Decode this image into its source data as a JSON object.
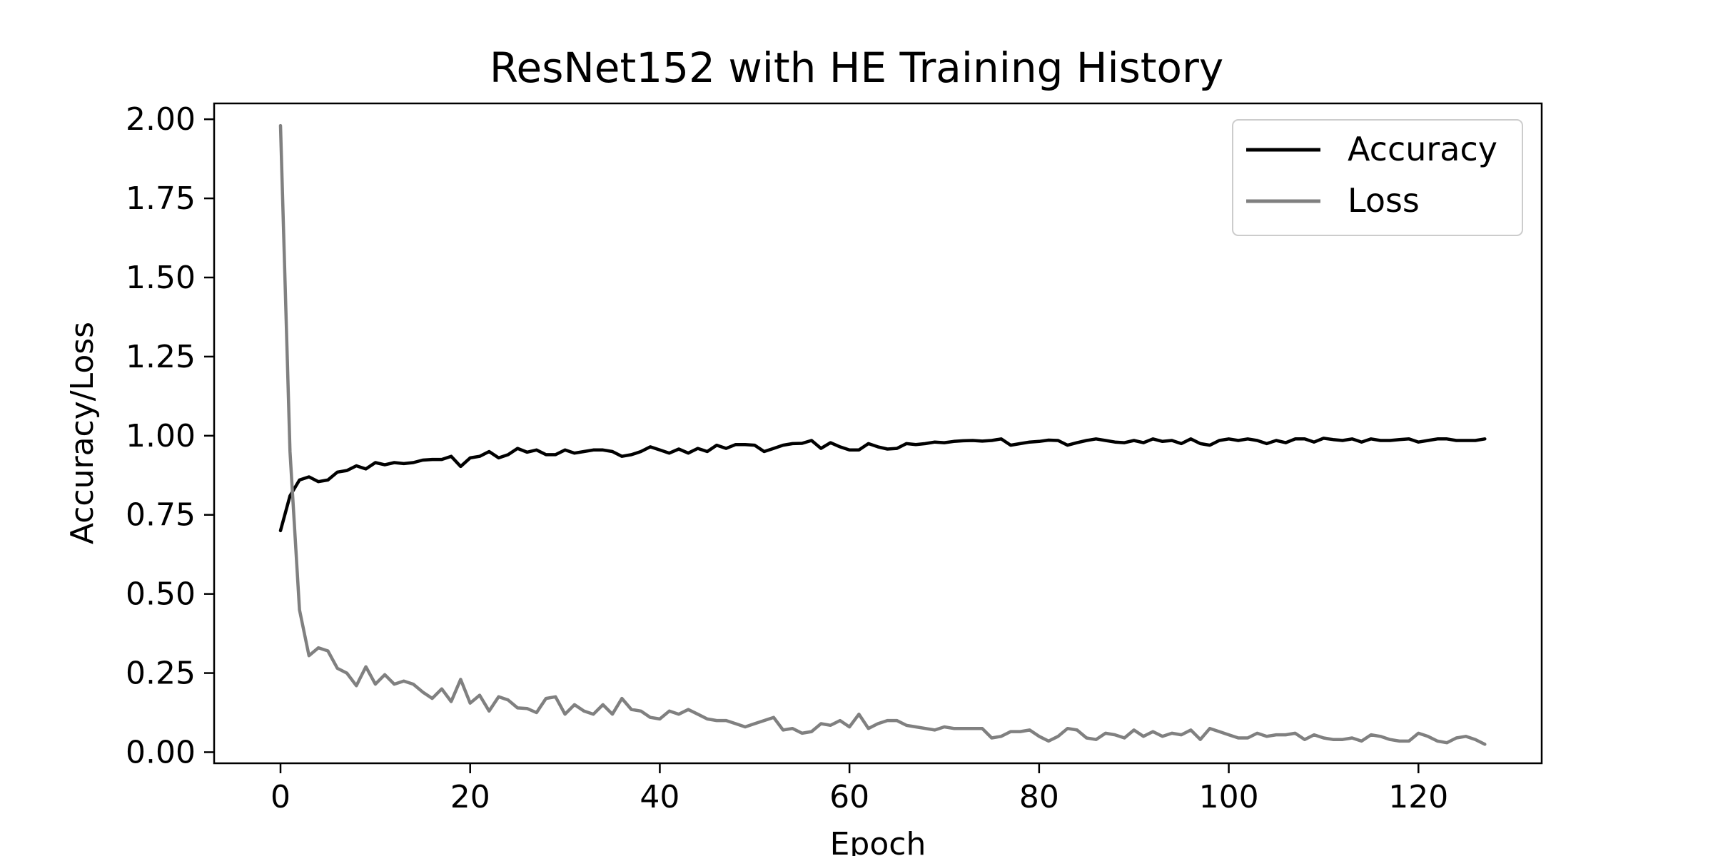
{
  "chart_data": {
    "type": "line",
    "title": "ResNet152 with HE Training History",
    "xlabel": "Epoch",
    "ylabel": "Accuracy/Loss",
    "xlim": [
      -7,
      133
    ],
    "ylim": [
      -0.035,
      2.05
    ],
    "x_ticks": [
      0,
      20,
      40,
      60,
      80,
      100,
      120
    ],
    "x_tick_labels": [
      "0",
      "20",
      "40",
      "60",
      "80",
      "100",
      "120"
    ],
    "y_ticks": [
      0,
      0.25,
      0.5,
      0.75,
      1.0,
      1.25,
      1.5,
      1.75,
      2.0
    ],
    "y_tick_labels": [
      "0.00",
      "0.25",
      "0.50",
      "0.75",
      "1.00",
      "1.25",
      "1.50",
      "1.75",
      "2.00"
    ],
    "grid": false,
    "legend_position": "top-right",
    "series": [
      {
        "name": "Accuracy",
        "color": "#000000",
        "values": [
          0.7,
          0.81,
          0.86,
          0.87,
          0.855,
          0.86,
          0.885,
          0.89,
          0.905,
          0.895,
          0.915,
          0.908,
          0.915,
          0.912,
          0.915,
          0.923,
          0.925,
          0.925,
          0.935,
          0.903,
          0.93,
          0.935,
          0.95,
          0.93,
          0.94,
          0.96,
          0.948,
          0.955,
          0.94,
          0.94,
          0.955,
          0.945,
          0.95,
          0.955,
          0.955,
          0.95,
          0.935,
          0.94,
          0.95,
          0.965,
          0.955,
          0.945,
          0.958,
          0.945,
          0.96,
          0.95,
          0.97,
          0.96,
          0.972,
          0.972,
          0.97,
          0.95,
          0.96,
          0.97,
          0.975,
          0.976,
          0.985,
          0.96,
          0.978,
          0.965,
          0.955,
          0.955,
          0.975,
          0.965,
          0.958,
          0.96,
          0.975,
          0.972,
          0.975,
          0.98,
          0.978,
          0.982,
          0.984,
          0.985,
          0.983,
          0.985,
          0.99,
          0.97,
          0.975,
          0.98,
          0.982,
          0.986,
          0.985,
          0.97,
          0.978,
          0.985,
          0.99,
          0.985,
          0.98,
          0.978,
          0.985,
          0.978,
          0.99,
          0.982,
          0.985,
          0.975,
          0.99,
          0.975,
          0.97,
          0.985,
          0.99,
          0.985,
          0.99,
          0.985,
          0.975,
          0.985,
          0.978,
          0.99,
          0.99,
          0.98,
          0.992,
          0.988,
          0.985,
          0.99,
          0.98,
          0.99,
          0.985,
          0.985,
          0.988,
          0.99,
          0.98,
          0.985,
          0.99,
          0.99,
          0.985,
          0.985,
          0.985,
          0.99
        ]
      },
      {
        "name": "Loss",
        "color": "#808080",
        "values": [
          1.98,
          0.95,
          0.45,
          0.305,
          0.33,
          0.32,
          0.265,
          0.25,
          0.21,
          0.27,
          0.215,
          0.245,
          0.215,
          0.225,
          0.215,
          0.19,
          0.17,
          0.2,
          0.16,
          0.23,
          0.155,
          0.18,
          0.13,
          0.175,
          0.165,
          0.14,
          0.138,
          0.125,
          0.17,
          0.175,
          0.12,
          0.15,
          0.13,
          0.12,
          0.15,
          0.12,
          0.17,
          0.135,
          0.13,
          0.11,
          0.105,
          0.13,
          0.12,
          0.135,
          0.12,
          0.105,
          0.1,
          0.1,
          0.09,
          0.08,
          0.09,
          0.1,
          0.11,
          0.07,
          0.075,
          0.06,
          0.065,
          0.09,
          0.085,
          0.1,
          0.08,
          0.12,
          0.075,
          0.09,
          0.1,
          0.1,
          0.085,
          0.08,
          0.075,
          0.07,
          0.08,
          0.075,
          0.075,
          0.075,
          0.075,
          0.045,
          0.05,
          0.065,
          0.065,
          0.07,
          0.05,
          0.035,
          0.05,
          0.075,
          0.07,
          0.045,
          0.04,
          0.06,
          0.055,
          0.045,
          0.07,
          0.05,
          0.065,
          0.05,
          0.06,
          0.055,
          0.07,
          0.04,
          0.075,
          0.065,
          0.055,
          0.045,
          0.045,
          0.06,
          0.05,
          0.055,
          0.055,
          0.06,
          0.04,
          0.055,
          0.045,
          0.04,
          0.04,
          0.045,
          0.035,
          0.055,
          0.05,
          0.04,
          0.035,
          0.035,
          0.06,
          0.05,
          0.035,
          0.03,
          0.045,
          0.05,
          0.04,
          0.025
        ]
      }
    ]
  }
}
